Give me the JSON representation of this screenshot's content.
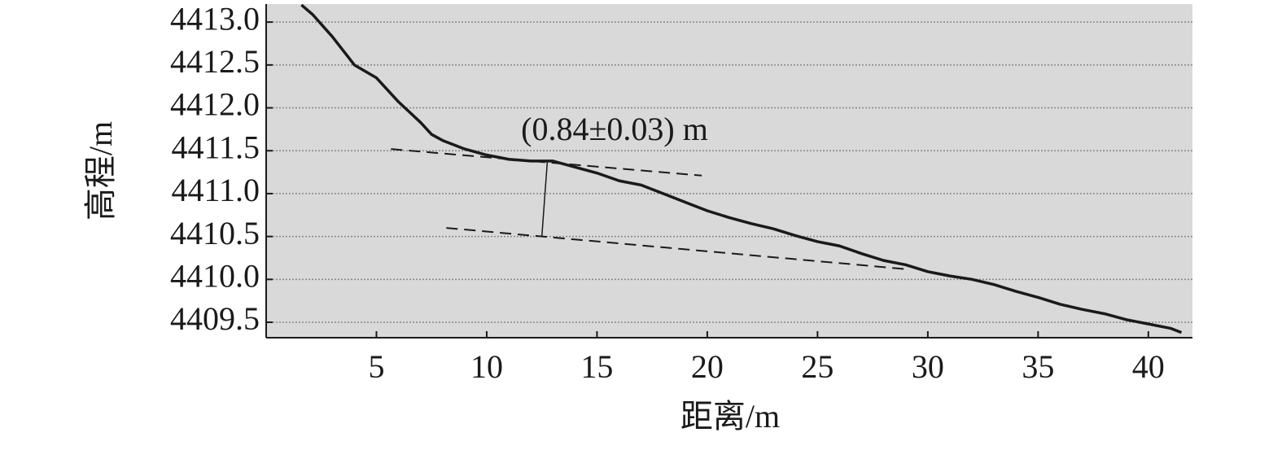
{
  "chart_data": {
    "type": "line",
    "xlabel": "距离/m",
    "ylabel": "高程/m",
    "annotation": "(0.84±0.03) m",
    "background": "#d9d9d9",
    "grid": true,
    "xlim": [
      0,
      42
    ],
    "ylim": [
      4409.32,
      4413.21
    ],
    "xticks": [
      5,
      10,
      15,
      20,
      25,
      30,
      35,
      40
    ],
    "yticks": [
      {
        "value": 4409.5,
        "label": "4409.5"
      },
      {
        "value": 4410,
        "label": "4410.0"
      },
      {
        "value": 4410.5,
        "label": "4410.5"
      },
      {
        "value": 4411,
        "label": "4411.0"
      },
      {
        "value": 4411.5,
        "label": "4411.5"
      },
      {
        "value": 4412,
        "label": "4412.0"
      },
      {
        "value": 4412.5,
        "label": "4412.5"
      },
      {
        "value": 4413,
        "label": "4413.0"
      }
    ],
    "series": [
      {
        "color": "#1a1a1a",
        "style": "solid",
        "width": 3.5,
        "x": [
          1.6,
          2.1,
          3,
          4,
          5,
          6,
          7,
          7.5,
          8,
          9,
          10,
          11,
          12,
          13,
          14,
          15,
          16,
          17,
          18,
          19,
          20,
          21,
          22,
          23,
          24,
          25,
          26,
          27,
          28,
          29,
          30,
          31,
          32,
          33,
          34,
          35,
          36,
          37,
          38,
          39,
          40,
          41,
          41.5
        ],
        "values": [
          4413.2,
          4413.09,
          4412.83,
          4412.5,
          4412.35,
          4412.07,
          4411.83,
          4411.69,
          4411.62,
          4411.52,
          4411.45,
          4411.4,
          4411.38,
          4411.38,
          4411.31,
          4411.24,
          4411.15,
          4411.1,
          4411.0,
          4410.9,
          4410.8,
          4410.72,
          4410.65,
          4410.59,
          4410.51,
          4410.44,
          4410.39,
          4410.3,
          4410.22,
          4410.17,
          4410.09,
          4410.04,
          4410.0,
          4409.94,
          4409.86,
          4409.79,
          4409.71,
          4409.65,
          4409.6,
          4409.53,
          4409.48,
          4409.43,
          4409.38
        ]
      },
      {
        "color": "#1a1a1a",
        "style": "dashed",
        "width": 2,
        "x": [
          5.66,
          19.75
        ],
        "values": [
          4411.52,
          4411.21
        ]
      },
      {
        "color": "#1a1a1a",
        "style": "dashed",
        "width": 2,
        "x": [
          8.17,
          29
        ],
        "values": [
          4410.6,
          4410.12
        ]
      },
      {
        "color": "#1a1a1a",
        "style": "solid",
        "width": 1.5,
        "x": [
          12.75,
          12.5
        ],
        "values": [
          4411.38,
          4410.5
        ]
      }
    ]
  }
}
